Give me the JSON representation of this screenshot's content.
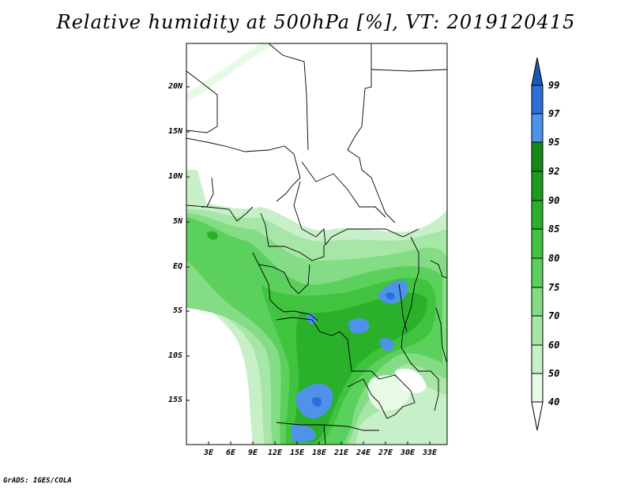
{
  "title": "Relative humidity at 500hPa [%], VT: 2019120415",
  "credit": "GrADS: IGES/COLA",
  "map": {
    "lat_labels": [
      "20N",
      "15N",
      "10N",
      "5N",
      "EQ",
      "5S",
      "10S",
      "15S"
    ],
    "lon_labels": [
      "3E",
      "6E",
      "9E",
      "12E",
      "15E",
      "18E",
      "21E",
      "24E",
      "27E",
      "30E",
      "33E"
    ]
  },
  "colorbar": {
    "labels": [
      "99",
      "97",
      "95",
      "92",
      "90",
      "85",
      "80",
      "75",
      "70",
      "60",
      "50",
      "40"
    ],
    "colors": {
      "c40": "#ffffff",
      "c50": "#e6fae6",
      "c60": "#c8f0c8",
      "c70": "#a6e6a6",
      "c75": "#84dc84",
      "c80": "#5cd05c",
      "c85": "#40c440",
      "c90": "#2bb02b",
      "c92": "#1e9a1e",
      "c95": "#168816",
      "c97": "#4f92ea",
      "c99": "#2d6fd8",
      "cmax": "#1e56b8"
    }
  }
}
